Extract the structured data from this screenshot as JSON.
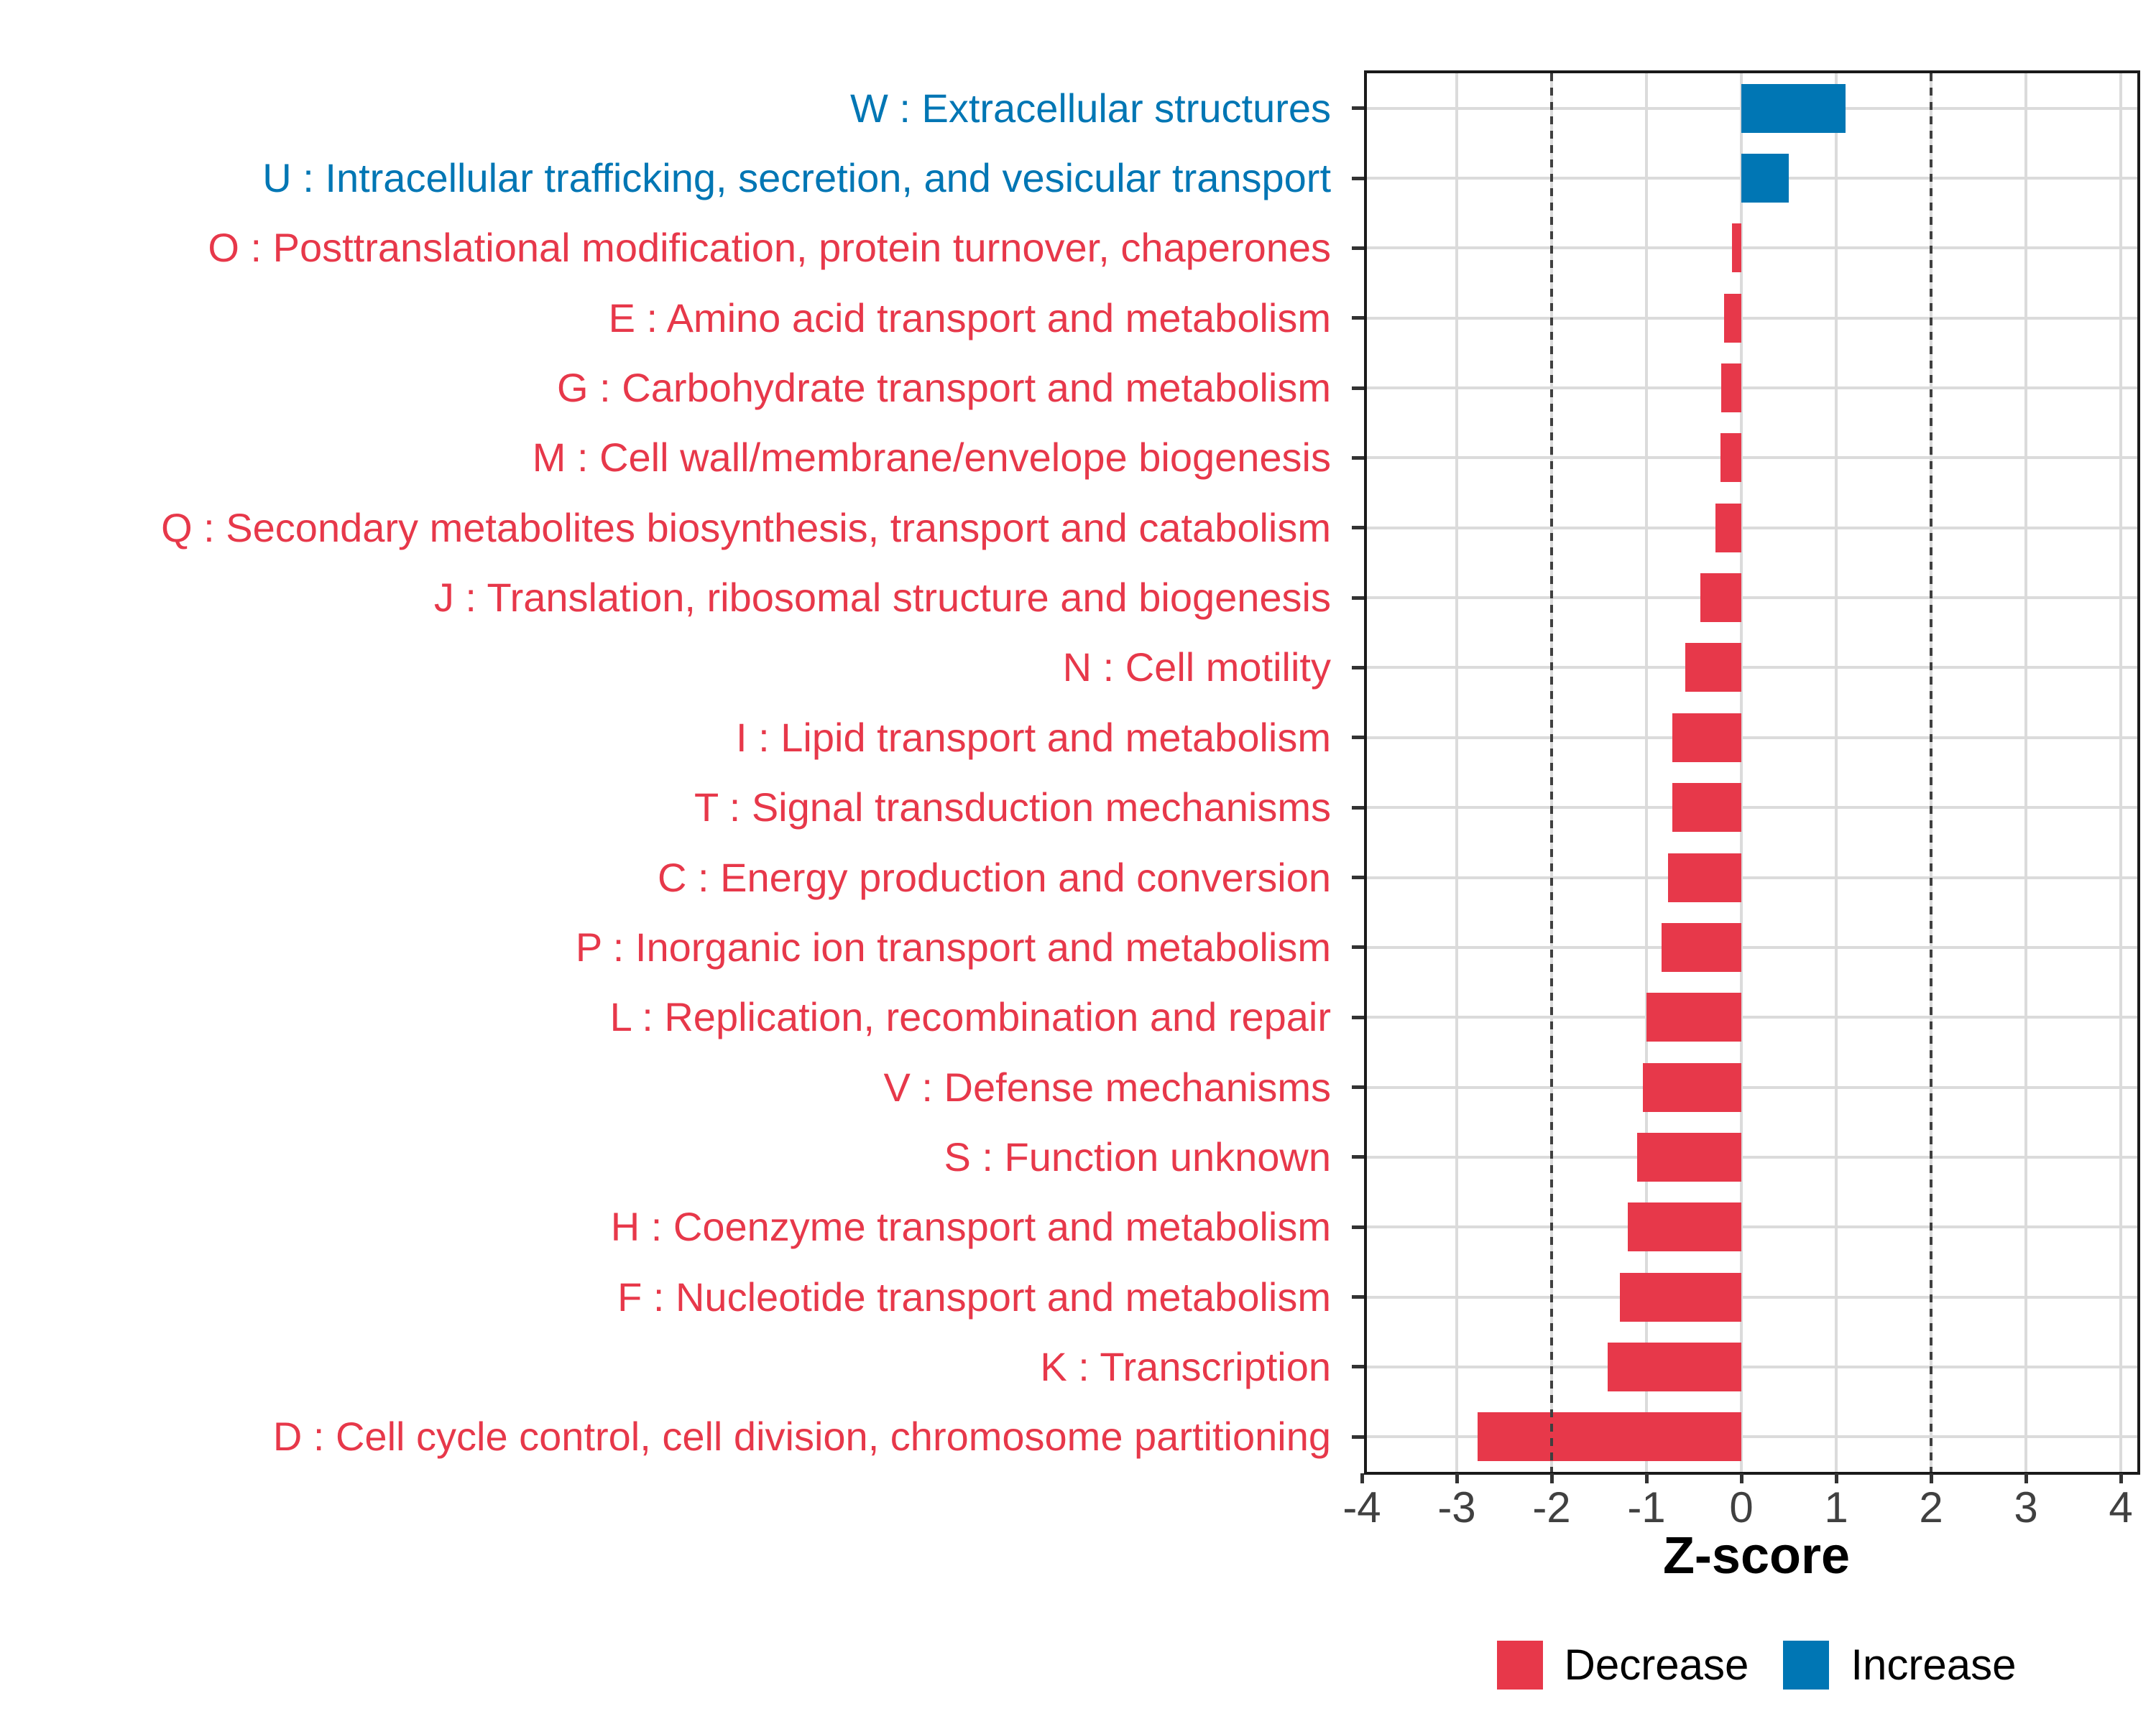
{
  "chart_data": {
    "type": "bar",
    "orientation": "horizontal",
    "title": "",
    "xlabel": "Z-score",
    "ylabel": "",
    "xlim": [
      -4,
      4
    ],
    "x_ticks": [
      -4,
      -3,
      -2,
      -1,
      0,
      1,
      2,
      3,
      4
    ],
    "x_tick_labels": [
      "-4",
      "-3",
      "-2",
      "-1",
      "0",
      "1",
      "2",
      "3",
      "4"
    ],
    "reference_lines": [
      -2,
      2
    ],
    "grid": true,
    "legend_position": "bottom",
    "legend": [
      {
        "label": "Decrease",
        "group": "Decrease",
        "color": "#E7384A"
      },
      {
        "label": "Increase",
        "group": "Increase",
        "color": "#0076B4"
      }
    ],
    "bars": [
      {
        "code": "W",
        "label": "W : Extracellular structures",
        "value": 1.1,
        "group": "Increase"
      },
      {
        "code": "U",
        "label": "U : Intracellular trafficking, secretion, and vesicular transport",
        "value": 0.5,
        "group": "Increase"
      },
      {
        "code": "O",
        "label": "O : Posttranslational modification, protein turnover, chaperones",
        "value": -0.1,
        "group": "Decrease"
      },
      {
        "code": "E",
        "label": "E : Amino acid transport and metabolism",
        "value": -0.18,
        "group": "Decrease"
      },
      {
        "code": "G",
        "label": "G : Carbohydrate transport and metabolism",
        "value": -0.21,
        "group": "Decrease"
      },
      {
        "code": "M",
        "label": "M : Cell wall/membrane/envelope biogenesis",
        "value": -0.22,
        "group": "Decrease"
      },
      {
        "code": "Q",
        "label": "Q : Secondary metabolites biosynthesis, transport and catabolism",
        "value": -0.27,
        "group": "Decrease"
      },
      {
        "code": "J",
        "label": "J : Translation, ribosomal structure and biogenesis",
        "value": -0.43,
        "group": "Decrease"
      },
      {
        "code": "N",
        "label": "N : Cell motility",
        "value": -0.59,
        "group": "Decrease"
      },
      {
        "code": "I",
        "label": "I : Lipid transport and metabolism",
        "value": -0.73,
        "group": "Decrease"
      },
      {
        "code": "T",
        "label": "T : Signal transduction mechanisms",
        "value": -0.73,
        "group": "Decrease"
      },
      {
        "code": "C",
        "label": "C : Energy production and conversion",
        "value": -0.77,
        "group": "Decrease"
      },
      {
        "code": "P",
        "label": "P : Inorganic ion transport and metabolism",
        "value": -0.84,
        "group": "Decrease"
      },
      {
        "code": "L",
        "label": "L : Replication, recombination and repair",
        "value": -1.0,
        "group": "Decrease"
      },
      {
        "code": "V",
        "label": "V : Defense mechanisms",
        "value": -1.04,
        "group": "Decrease"
      },
      {
        "code": "S",
        "label": "S : Function unknown",
        "value": -1.1,
        "group": "Decrease"
      },
      {
        "code": "H",
        "label": "H : Coenzyme transport and metabolism",
        "value": -1.2,
        "group": "Decrease"
      },
      {
        "code": "F",
        "label": "F : Nucleotide transport and metabolism",
        "value": -1.28,
        "group": "Decrease"
      },
      {
        "code": "K",
        "label": "K : Transcription",
        "value": -1.41,
        "group": "Decrease"
      },
      {
        "code": "D",
        "label": "D : Cell cycle control, cell division, chromosome partitioning",
        "value": -2.78,
        "group": "Decrease"
      }
    ],
    "colors": {
      "decrease": "#E7384A",
      "increase": "#0076B4",
      "grid": "#DBDBDB",
      "reference_line": "#3F3F3F",
      "axis_line": "#1A1A1A",
      "axis_tick_text": "#404040"
    }
  }
}
